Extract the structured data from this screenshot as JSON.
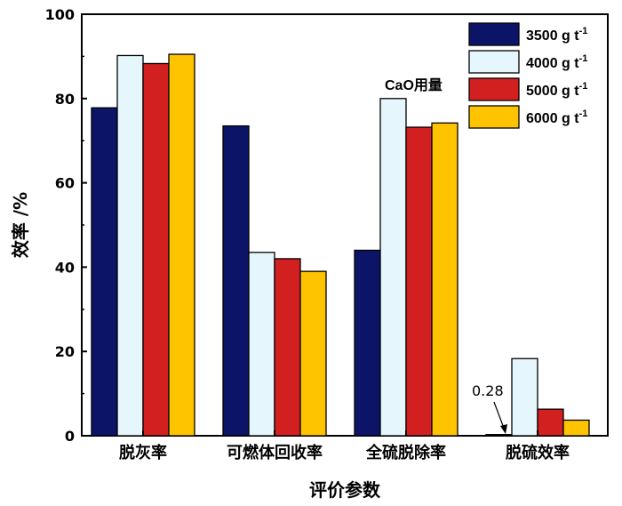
{
  "chart_data": {
    "type": "bar",
    "title": "",
    "xlabel": "评价参数",
    "ylabel": "效率 /%",
    "ylim": [
      0,
      100
    ],
    "yticks": [
      "0",
      "20",
      "40",
      "60",
      "80",
      "100"
    ],
    "categories": [
      "脱灰率",
      "可燃体回收率",
      "全硫脱除率",
      "脱硫效率"
    ],
    "series": [
      {
        "name": "3500 g t",
        "sup": "-1",
        "color": "#0b1466",
        "values": [
          77.8,
          73.5,
          44.0,
          0.28
        ]
      },
      {
        "name": "4000 g t",
        "sup": "-1",
        "color": "#e6f6fd",
        "values": [
          90.2,
          43.5,
          80.0,
          18.3
        ]
      },
      {
        "name": "5000 g t",
        "sup": "-1",
        "color": "#d22020",
        "values": [
          88.3,
          42.0,
          73.2,
          6.3
        ]
      },
      {
        "name": "6000 g t",
        "sup": "-1",
        "color": "#ffc400",
        "values": [
          90.5,
          39.0,
          74.2,
          3.7
        ]
      }
    ],
    "legend_title": "CaO用量",
    "legend_position": "top-right",
    "annotation": "0.28"
  }
}
